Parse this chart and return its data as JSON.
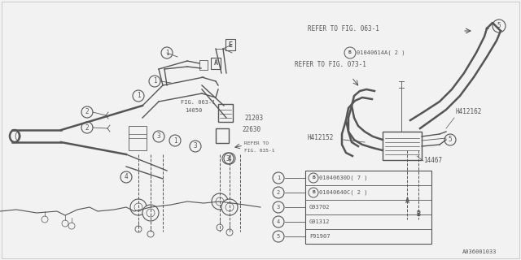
{
  "bg_color": "#f2f2f2",
  "line_color": "#555555",
  "diagram_code": "A036001033",
  "parts": [
    {
      "num": "1",
      "label": "01040630D( 7 )",
      "has_b": true
    },
    {
      "num": "2",
      "label": "01040640C( 2 )",
      "has_b": true
    },
    {
      "num": "3",
      "label": "G93702",
      "has_b": false
    },
    {
      "num": "4",
      "label": "G91312",
      "has_b": false
    },
    {
      "num": "5",
      "label": "F91907",
      "has_b": false
    }
  ]
}
